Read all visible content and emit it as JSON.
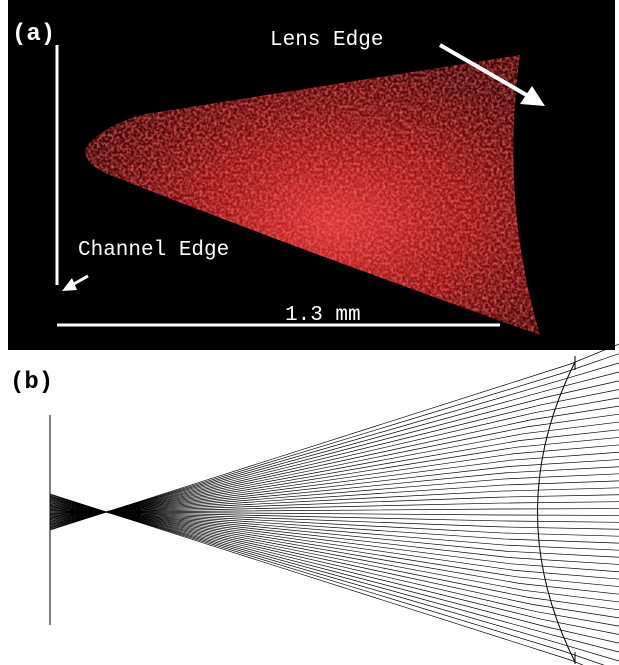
{
  "panel_a": {
    "label": "(a)",
    "lens_edge": "Lens Edge",
    "channel_edge": "Channel Edge",
    "scale_bar": "1.3 mm"
  },
  "panel_b": {
    "label": "(b)"
  }
}
